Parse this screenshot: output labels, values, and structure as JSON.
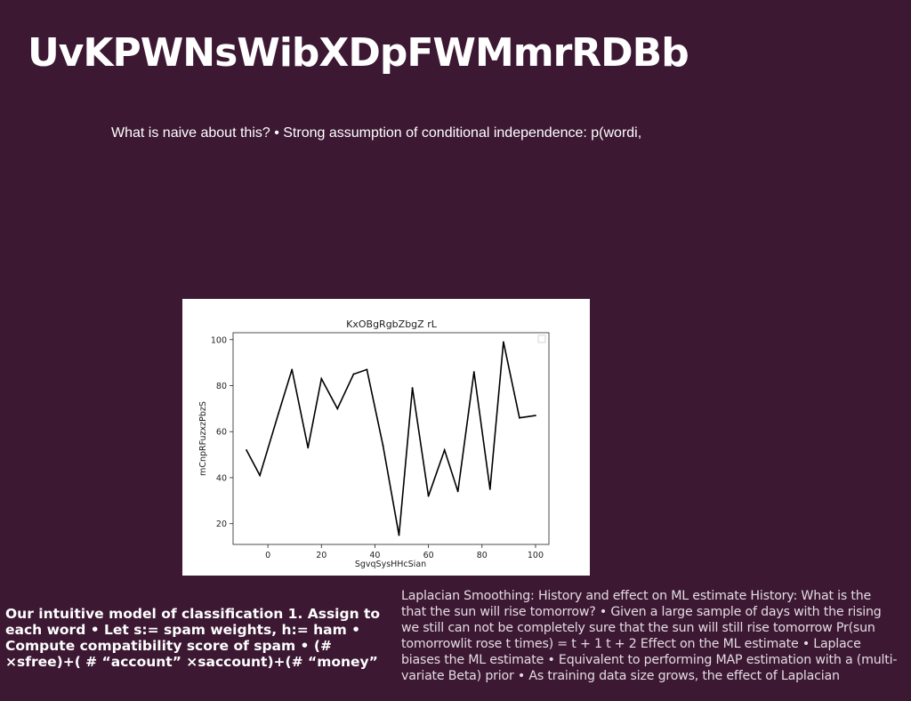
{
  "slide": {
    "title": "UvKPWNsWibXDpFWMmrRDBb",
    "subtitle": "What is naive about this? • Strong assumption of conditional independence: p(wordi,",
    "left_text": "Our intuitive model of classification 1. Assign to each word • Let s:= spam weights, h:= ham • Compute compatibility score of spam • (# ×sfree)+( # “account” ×saccount)+(# “money”",
    "right_text": "Laplacian Smoothing: History and effect on ML estimate History: What is the that the sun will rise tomorrow? • Given a large sample of days with the rising we still can not be completely sure that the sun will still rise tomorrow Pr(sun tomorrowlit rose t times) = t + 1 t + 2 Effect on the ML estimate • Laplace biases the ML estimate • Equivalent to performing MAP estimation with a (multi-variate Beta) prior • As training data size grows, the effect of Laplacian",
    "colors": {
      "background": "#3c1833",
      "text": "#ffffff",
      "line": "#000000"
    }
  },
  "chart_data": {
    "type": "line",
    "title": "KxOBgRgbZbgZ rL",
    "xlabel": "SgvqSysHHcSian",
    "ylabel": "mCnpRFuzxzPbzS",
    "xlim": [
      -13,
      105
    ],
    "ylim": [
      11,
      103
    ],
    "xticks": [
      0,
      20,
      40,
      60,
      80,
      100
    ],
    "yticks": [
      20,
      40,
      60,
      80,
      100
    ],
    "legend": "top-right (empty)",
    "grid": false,
    "x": [
      -8,
      -3,
      4,
      9,
      15,
      20,
      26,
      32,
      37,
      43,
      49,
      54,
      60,
      66,
      71,
      77,
      83,
      88,
      94,
      100
    ],
    "values": [
      52,
      41,
      68,
      87,
      53,
      83,
      70,
      85,
      87,
      54,
      15,
      79,
      32,
      52,
      34,
      86,
      35,
      99,
      66,
      67
    ]
  }
}
